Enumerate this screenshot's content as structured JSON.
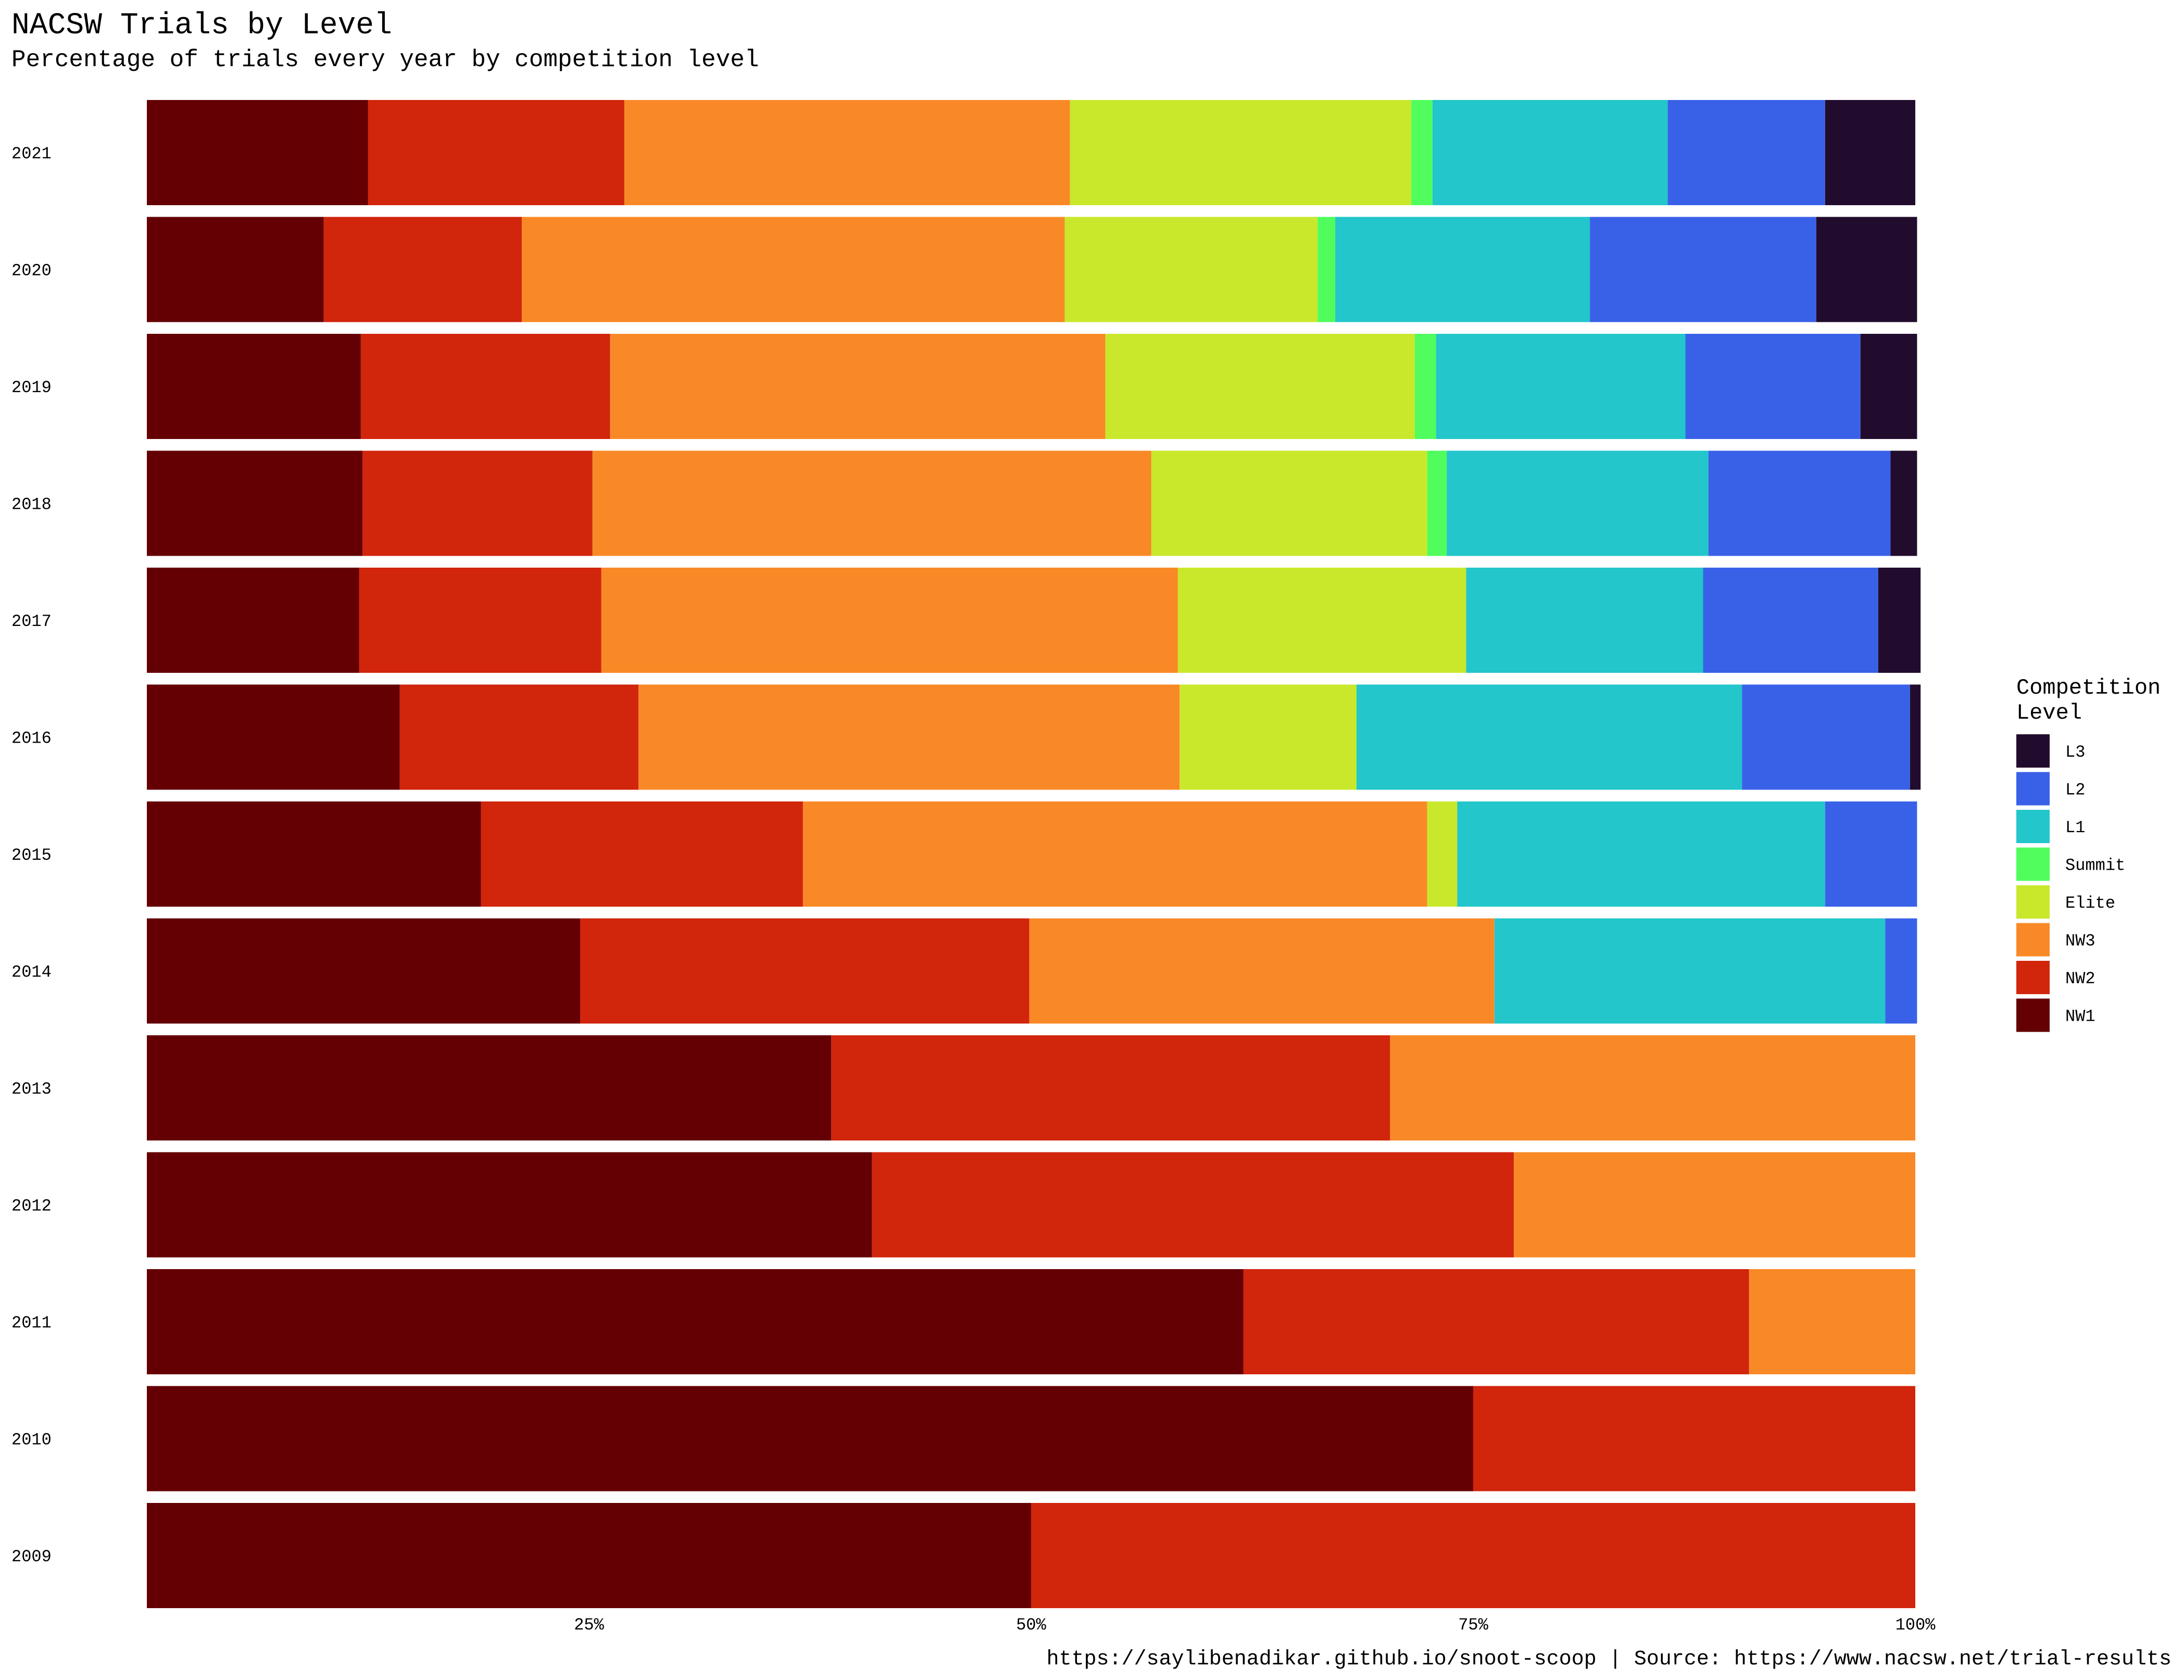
{
  "chart_data": {
    "type": "bar",
    "orientation": "horizontal",
    "stacked": "percent",
    "title": "NACSW Trials by Level",
    "subtitle": "Percentage of trials every year by competition level",
    "caption": "https://saylibenadikar.github.io/snoot-scoop | Source: https://www.nacsw.net/trial-results",
    "xlabel": "",
    "ylabel": "",
    "xlim": [
      0,
      100
    ],
    "x_ticks": [
      {
        "value": 25,
        "label": "25%"
      },
      {
        "value": 50,
        "label": "50%"
      },
      {
        "value": 75,
        "label": "75%"
      },
      {
        "value": 100,
        "label": "100%"
      }
    ],
    "grid": false,
    "legend": {
      "title_lines": [
        "Competition",
        "Level"
      ],
      "placement": "right",
      "order": [
        "L3",
        "L2",
        "L1",
        "Summit",
        "Elite",
        "NW3",
        "NW2",
        "NW1"
      ]
    },
    "categories": [
      "2021",
      "2020",
      "2019",
      "2018",
      "2017",
      "2016",
      "2015",
      "2014",
      "2013",
      "2012",
      "2011",
      "2010",
      "2009"
    ],
    "series": [
      {
        "name": "NW1",
        "color": "#640004",
        "values": [
          12.5,
          10.0,
          12.1,
          12.2,
          12.0,
          14.3,
          18.9,
          24.5,
          38.7,
          41.0,
          62.0,
          75.0,
          50.0
        ]
      },
      {
        "name": "NW2",
        "color": "#d1250c",
        "values": [
          14.5,
          11.2,
          14.1,
          13.0,
          13.7,
          13.5,
          18.2,
          25.4,
          31.6,
          36.3,
          28.6,
          25.0,
          50.0
        ]
      },
      {
        "name": "NW3",
        "color": "#f98927",
        "values": [
          25.2,
          30.7,
          28.0,
          31.6,
          32.6,
          30.6,
          35.3,
          26.3,
          29.7,
          22.7,
          9.4,
          0,
          0
        ]
      },
      {
        "name": "Elite",
        "color": "#c9e82b",
        "values": [
          19.3,
          14.3,
          17.5,
          15.6,
          16.3,
          10.0,
          1.7,
          0,
          0,
          0,
          0,
          0,
          0
        ]
      },
      {
        "name": "Summit",
        "color": "#50fd5d",
        "values": [
          1.2,
          1.0,
          1.2,
          1.1,
          0,
          0,
          0,
          0,
          0,
          0,
          0,
          0,
          0
        ]
      },
      {
        "name": "L1",
        "color": "#22c6cb",
        "values": [
          13.3,
          14.4,
          14.1,
          14.8,
          13.4,
          21.8,
          20.8,
          22.1,
          0,
          0,
          0,
          0,
          0
        ]
      },
      {
        "name": "L2",
        "color": "#3961e8",
        "values": [
          8.9,
          12.8,
          9.9,
          10.3,
          9.9,
          9.5,
          5.2,
          1.8,
          0,
          0,
          0,
          0,
          0
        ]
      },
      {
        "name": "L3",
        "color": "#220c2d",
        "values": [
          5.1,
          5.7,
          3.2,
          1.5,
          2.4,
          0.6,
          0,
          0,
          0,
          0,
          0,
          0,
          0
        ]
      }
    ]
  }
}
